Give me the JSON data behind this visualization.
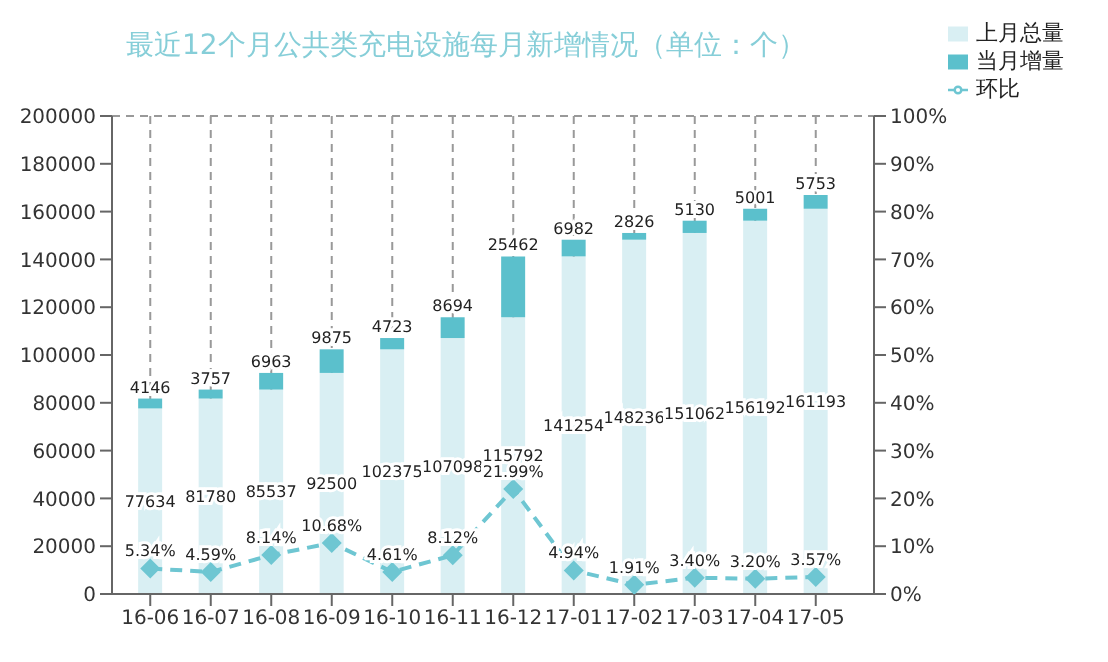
{
  "chart_data": {
    "type": "bar",
    "title": "最近12个月公共类充电设施每月新增情况（单位：个）",
    "categories": [
      "16-06",
      "16-07",
      "16-08",
      "16-09",
      "16-10",
      "16-11",
      "16-12",
      "17-01",
      "17-02",
      "17-03",
      "17-04",
      "17-05"
    ],
    "stacked": true,
    "series": [
      {
        "name": "上月总量",
        "color": "#d9eff3",
        "values": [
          77634,
          81780,
          85537,
          92500,
          102375,
          107098,
          115792,
          141254,
          148236,
          151062,
          156192,
          161193
        ],
        "value_labels": [
          "77634",
          "81780",
          "85537",
          "92500",
          "102375",
          "107098",
          "115792",
          "141254",
          "148236",
          "151062",
          "156192",
          "161193"
        ]
      },
      {
        "name": "当月增量",
        "color": "#5bc0cc",
        "values": [
          4146,
          3757,
          6963,
          9875,
          4723,
          8694,
          25462,
          6982,
          2826,
          5130,
          5001,
          5753
        ],
        "value_labels": [
          "4146",
          "3757",
          "6963",
          "9875",
          "4723",
          "8694",
          "25462",
          "6982",
          "2826",
          "5130",
          "5001",
          "5753"
        ]
      },
      {
        "name": "环比",
        "type": "line",
        "axis": "y2",
        "color": "#6ec6d2",
        "marker": "diamond",
        "line_style": "dashed",
        "values": [
          5.34,
          4.59,
          8.14,
          10.68,
          4.61,
          8.12,
          21.99,
          4.94,
          1.91,
          3.4,
          3.2,
          3.57
        ],
        "value_labels": [
          "5.34%",
          "4.59%",
          "8.14%",
          "10.68%",
          "4.61%",
          "8.12%",
          "21.99%",
          "4.94%",
          "1.91%",
          "3.40%",
          "3.20%",
          "3.57%"
        ]
      }
    ],
    "ylim": [
      0,
      200000
    ],
    "yticks": [
      0,
      20000,
      40000,
      60000,
      80000,
      100000,
      120000,
      140000,
      160000,
      180000,
      200000
    ],
    "y2lim": [
      0,
      100
    ],
    "y2ticks": [
      {
        "value": 0,
        "label": "0%"
      },
      {
        "value": 10,
        "label": "10%"
      },
      {
        "value": 20,
        "label": "20%"
      },
      {
        "value": 30,
        "label": "30%"
      },
      {
        "value": 40,
        "label": "40%"
      },
      {
        "value": 50,
        "label": "50%"
      },
      {
        "value": 60,
        "label": "60%"
      },
      {
        "value": 70,
        "label": "70%"
      },
      {
        "value": 80,
        "label": "80%"
      },
      {
        "value": 90,
        "label": "90%"
      },
      {
        "value": 100,
        "label": "100%"
      }
    ],
    "grid": true,
    "legend": "top right"
  }
}
